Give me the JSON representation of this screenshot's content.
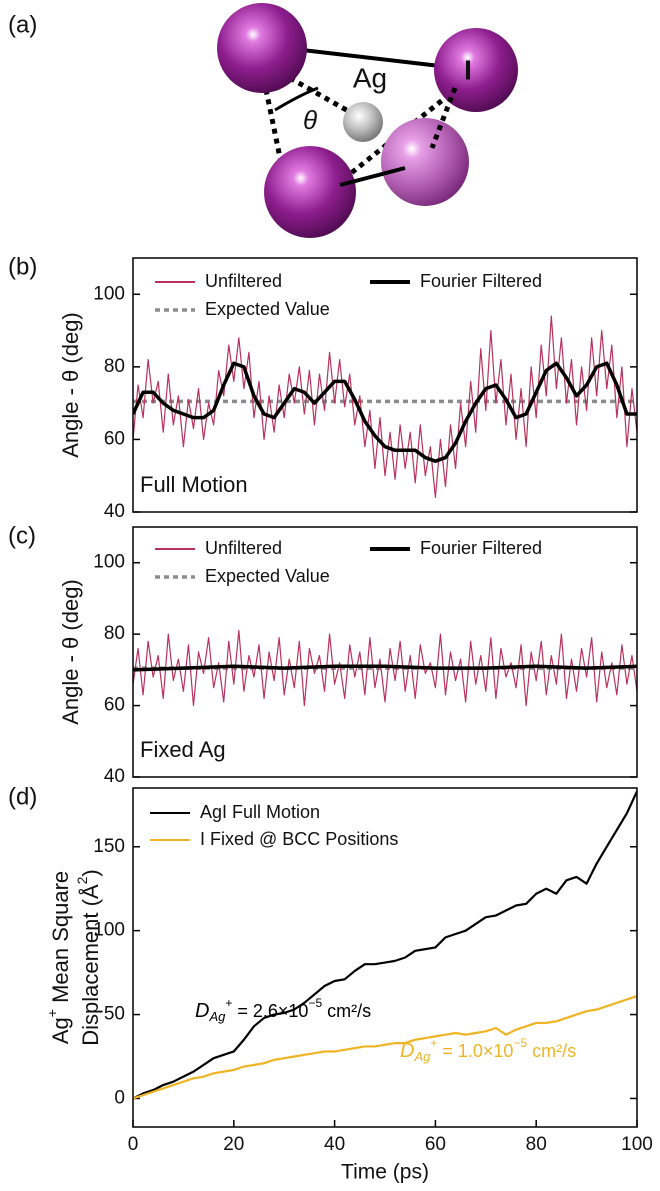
{
  "diagram": {
    "panel_label": "(a)",
    "ag_label": "Ag",
    "angle_label": "θ",
    "iodine_label": "I"
  },
  "chart_data": [
    {
      "type": "line",
      "panel_label": "(b)",
      "panel_text": "Full Motion",
      "ylabel": "Angle - θ (deg)",
      "xlim": [
        0,
        100
      ],
      "ylim": [
        40,
        110
      ],
      "yticks": [
        40,
        60,
        80,
        100
      ],
      "series": [
        {
          "name": "Unfiltered",
          "color": "#b8325c",
          "x": [
            0,
            1,
            2,
            3,
            4,
            5,
            6,
            7,
            8,
            9,
            10,
            11,
            12,
            13,
            14,
            15,
            16,
            17,
            18,
            19,
            20,
            21,
            22,
            23,
            24,
            25,
            26,
            27,
            28,
            29,
            30,
            31,
            32,
            33,
            34,
            35,
            36,
            37,
            38,
            39,
            40,
            41,
            42,
            43,
            44,
            45,
            46,
            47,
            48,
            49,
            50,
            51,
            52,
            53,
            54,
            55,
            56,
            57,
            58,
            59,
            60,
            61,
            62,
            63,
            64,
            65,
            66,
            67,
            68,
            69,
            70,
            71,
            72,
            73,
            74,
            75,
            76,
            77,
            78,
            79,
            80,
            81,
            82,
            83,
            84,
            85,
            86,
            87,
            88,
            89,
            90,
            91,
            92,
            93,
            94,
            95,
            96,
            97,
            98,
            99,
            100
          ],
          "values": [
            60,
            75,
            66,
            82,
            70,
            76,
            62,
            78,
            64,
            72,
            58,
            71,
            63,
            74,
            60,
            70,
            64,
            79,
            72,
            86,
            76,
            88,
            74,
            84,
            66,
            76,
            60,
            72,
            62,
            75,
            66,
            78,
            70,
            80,
            67,
            79,
            64,
            78,
            68,
            84,
            70,
            82,
            69,
            78,
            64,
            72,
            58,
            68,
            52,
            66,
            50,
            62,
            49,
            64,
            52,
            62,
            48,
            64,
            50,
            58,
            44,
            60,
            47,
            64,
            52,
            70,
            58,
            76,
            62,
            85,
            68,
            90,
            70,
            82,
            64,
            78,
            60,
            74,
            58,
            80,
            66,
            86,
            72,
            94,
            74,
            88,
            70,
            82,
            64,
            80,
            68,
            88,
            72,
            90,
            74,
            86,
            66,
            80,
            58,
            74,
            62
          ]
        },
        {
          "name": "Fourier Filtered",
          "color": "#000000",
          "x": [
            0,
            2,
            4,
            6,
            8,
            10,
            12,
            14,
            16,
            18,
            20,
            22,
            24,
            26,
            28,
            30,
            32,
            34,
            36,
            38,
            40,
            42,
            44,
            46,
            48,
            50,
            52,
            54,
            56,
            58,
            60,
            62,
            64,
            66,
            68,
            70,
            72,
            74,
            76,
            78,
            80,
            82,
            84,
            86,
            88,
            90,
            92,
            94,
            96,
            98,
            100
          ],
          "values": [
            67,
            73,
            73,
            70,
            68,
            67,
            66,
            66,
            68,
            75,
            81,
            80,
            72,
            67,
            66,
            70,
            74,
            73,
            70,
            73,
            76,
            76,
            71,
            65,
            61,
            58,
            57,
            57,
            57,
            55,
            54,
            55,
            59,
            65,
            70,
            74,
            75,
            71,
            66,
            67,
            73,
            79,
            81,
            77,
            72,
            75,
            80,
            81,
            75,
            67,
            67
          ]
        }
      ],
      "reference_line": {
        "name": "Expected Value",
        "value": 70.5,
        "color": "#8c8c8c"
      }
    },
    {
      "type": "line",
      "panel_label": "(c)",
      "panel_text": "Fixed Ag",
      "ylabel": "Angle - θ (deg)",
      "xlim": [
        0,
        100
      ],
      "ylim": [
        40,
        110
      ],
      "yticks": [
        40,
        60,
        80,
        100
      ],
      "series": [
        {
          "name": "Unfiltered",
          "color": "#b8325c",
          "x": [
            0,
            1,
            2,
            3,
            4,
            5,
            6,
            7,
            8,
            9,
            10,
            11,
            12,
            13,
            14,
            15,
            16,
            17,
            18,
            19,
            20,
            21,
            22,
            23,
            24,
            25,
            26,
            27,
            28,
            29,
            30,
            31,
            32,
            33,
            34,
            35,
            36,
            37,
            38,
            39,
            40,
            41,
            42,
            43,
            44,
            45,
            46,
            47,
            48,
            49,
            50,
            51,
            52,
            53,
            54,
            55,
            56,
            57,
            58,
            59,
            60,
            61,
            62,
            63,
            64,
            65,
            66,
            67,
            68,
            69,
            70,
            71,
            72,
            73,
            74,
            75,
            76,
            77,
            78,
            79,
            80,
            81,
            82,
            83,
            84,
            85,
            86,
            87,
            88,
            89,
            90,
            91,
            92,
            93,
            94,
            95,
            96,
            97,
            98,
            99,
            100
          ],
          "values": [
            66,
            76,
            63,
            78,
            68,
            74,
            62,
            80,
            67,
            73,
            64,
            77,
            60,
            75,
            69,
            79,
            65,
            72,
            61,
            78,
            66,
            81,
            64,
            74,
            68,
            77,
            62,
            75,
            67,
            79,
            63,
            73,
            65,
            78,
            60,
            76,
            69,
            74,
            64,
            80,
            66,
            72,
            62,
            77,
            68,
            75,
            63,
            79,
            65,
            73,
            61,
            76,
            67,
            78,
            64,
            74,
            62,
            77,
            69,
            72,
            65,
            80,
            63,
            75,
            67,
            73,
            61,
            78,
            66,
            74,
            64,
            79,
            62,
            76,
            68,
            72,
            65,
            77,
            60,
            75,
            67,
            78,
            63,
            74,
            66,
            80,
            62,
            73,
            64,
            76,
            68,
            79,
            61,
            75,
            65,
            72,
            63,
            77,
            66,
            74,
            64
          ]
        },
        {
          "name": "Fourier Filtered",
          "color": "#000000",
          "x": [
            0,
            10,
            20,
            30,
            40,
            50,
            60,
            70,
            80,
            90,
            100
          ],
          "values": [
            70,
            70.5,
            71,
            70.5,
            71,
            71,
            70.5,
            70.5,
            71,
            70.5,
            71
          ]
        }
      ],
      "reference_line": {
        "name": "Expected Value",
        "value": 70.5,
        "color": "#8c8c8c"
      }
    },
    {
      "type": "line",
      "panel_label": "(d)",
      "xlabel": "Time (ps)",
      "ylabel": {
        "line1": {
          "base": "Ag",
          "sup": "+",
          "rest": " Mean Square"
        },
        "line2": {
          "base": "Displacement (Å",
          "sup": "2",
          "rest": ")"
        }
      },
      "xlim": [
        0,
        100
      ],
      "xticks": [
        0,
        20,
        40,
        60,
        80,
        100
      ],
      "ylim": [
        -17,
        185
      ],
      "yticks": [
        0,
        50,
        100,
        150
      ],
      "series": [
        {
          "name": "AgI Full Motion",
          "color": "#000000",
          "x": [
            0,
            2,
            4,
            6,
            8,
            10,
            12,
            14,
            16,
            18,
            20,
            22,
            24,
            26,
            28,
            30,
            32,
            34,
            36,
            38,
            40,
            42,
            44,
            46,
            48,
            50,
            52,
            54,
            56,
            58,
            60,
            62,
            64,
            66,
            68,
            70,
            72,
            74,
            76,
            78,
            80,
            82,
            84,
            86,
            88,
            90,
            92,
            94,
            96,
            98,
            100
          ],
          "values": [
            0,
            3,
            5,
            8,
            10,
            13,
            16,
            20,
            24,
            26,
            28,
            35,
            43,
            48,
            50,
            51,
            53,
            57,
            62,
            67,
            70,
            71,
            76,
            80,
            80,
            81,
            82,
            84,
            88,
            89,
            90,
            96,
            98,
            100,
            104,
            108,
            109,
            112,
            115,
            116,
            122,
            125,
            122,
            130,
            132,
            128,
            140,
            150,
            160,
            170,
            183
          ]
        },
        {
          "name": "I Fixed @ BCC Positions",
          "color": "#efb424",
          "x": [
            0,
            2,
            4,
            6,
            8,
            10,
            12,
            14,
            16,
            18,
            20,
            22,
            24,
            26,
            28,
            30,
            32,
            34,
            36,
            38,
            40,
            42,
            44,
            46,
            48,
            50,
            52,
            54,
            56,
            58,
            60,
            62,
            64,
            66,
            68,
            70,
            72,
            74,
            76,
            78,
            80,
            82,
            84,
            86,
            88,
            90,
            92,
            94,
            96,
            98,
            100
          ],
          "values": [
            0,
            2,
            4,
            6,
            8,
            10,
            12,
            13,
            15,
            16,
            17,
            19,
            20,
            21,
            23,
            24,
            25,
            26,
            27,
            28,
            28,
            29,
            30,
            31,
            31,
            32,
            33,
            33,
            35,
            36,
            37,
            38,
            39,
            38,
            39,
            40,
            42,
            38,
            41,
            43,
            45,
            45,
            46,
            48,
            50,
            52,
            53,
            55,
            57,
            59,
            61
          ]
        }
      ],
      "annotations": [
        {
          "symbol": "D",
          "subscript": "Ag",
          "superscript": "+",
          "text": " = 2.6×10",
          "exponent": "−5",
          "unit": " cm²/s",
          "color": "#000000"
        },
        {
          "symbol": "D",
          "subscript": "Ag",
          "superscript": "+",
          "text": " = 1.0×10",
          "exponent": "−5",
          "unit": " cm²/s",
          "color": "#efb424"
        }
      ]
    }
  ]
}
